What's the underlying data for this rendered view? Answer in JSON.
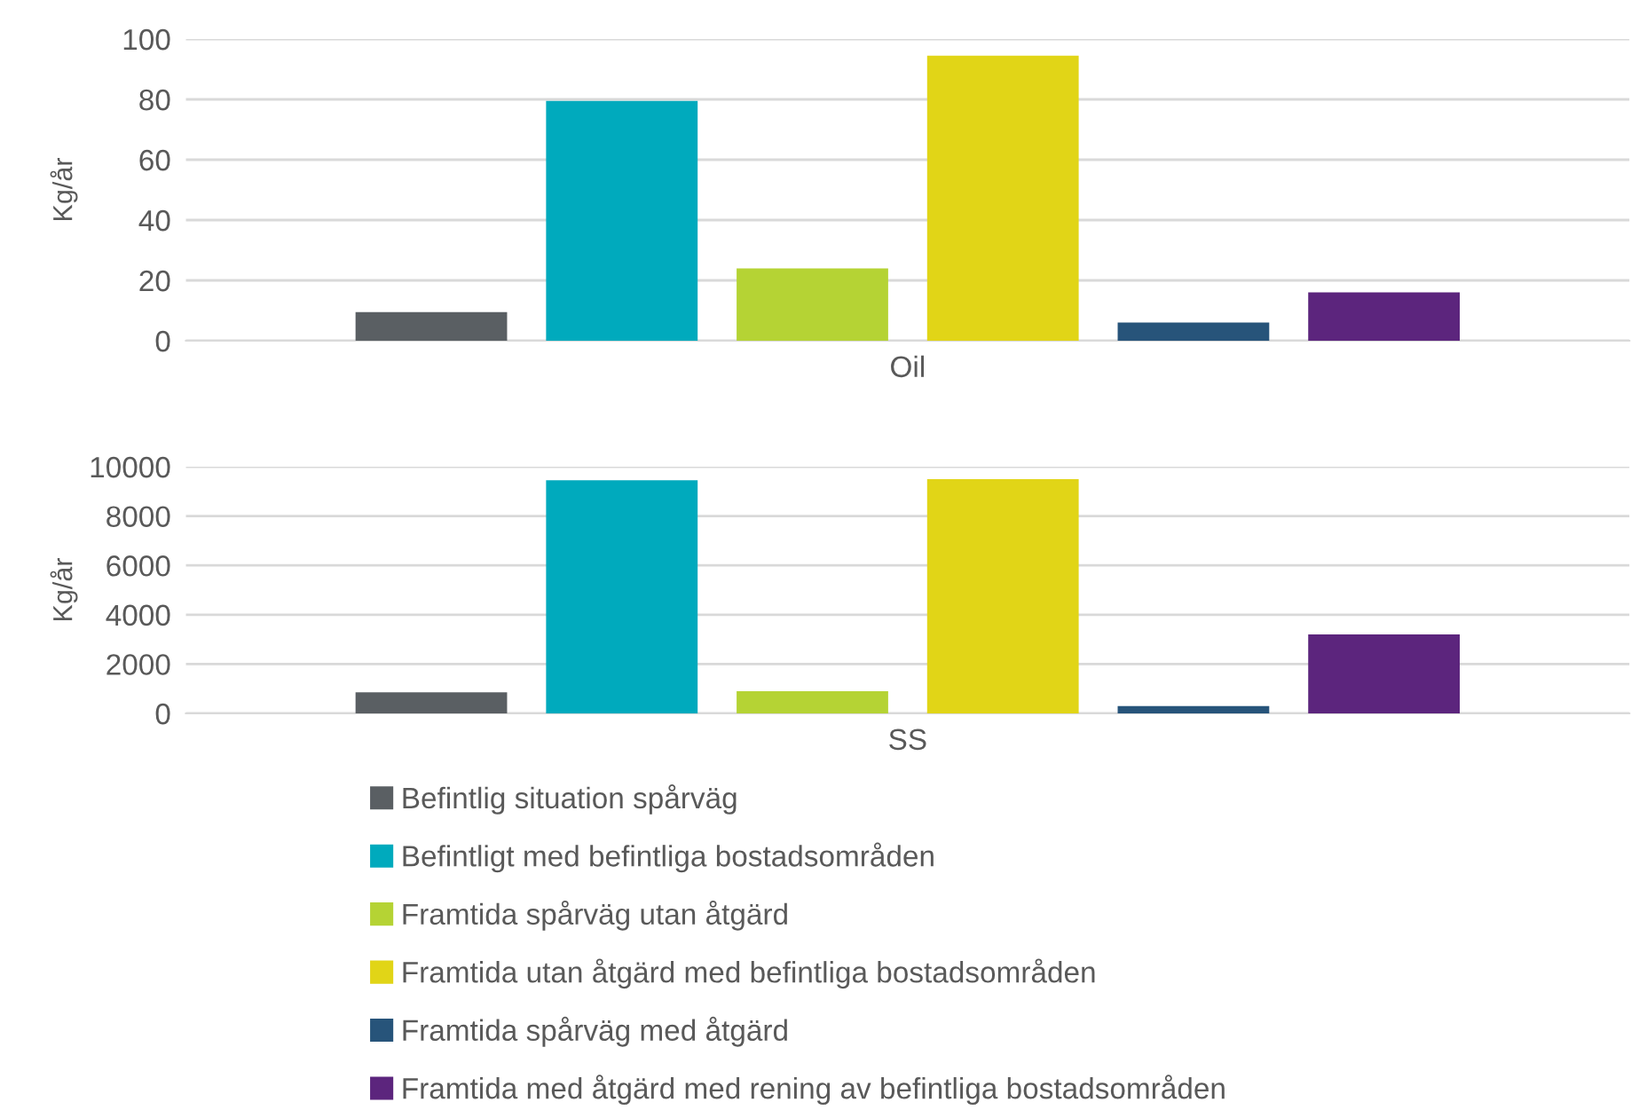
{
  "chart_data": [
    {
      "type": "bar",
      "ylabel": "Kg/år",
      "categories": [
        "Oil"
      ],
      "ylim": [
        0,
        100
      ],
      "yticks": [
        0,
        20,
        40,
        60,
        80,
        100
      ],
      "grid": "y",
      "legend": false,
      "series": [
        {
          "color": "#5a5f63",
          "values": [
            9.5
          ]
        },
        {
          "color": "#00aabd",
          "values": [
            79.5
          ]
        },
        {
          "color": "#b5d334",
          "values": [
            24
          ]
        },
        {
          "color": "#e1d517",
          "values": [
            94.5
          ]
        },
        {
          "color": "#27547a",
          "values": [
            6
          ]
        },
        {
          "color": "#5c257d",
          "values": [
            16
          ]
        }
      ]
    },
    {
      "type": "bar",
      "ylabel": "Kg/år",
      "categories": [
        "SS"
      ],
      "ylim": [
        0,
        10000
      ],
      "yticks": [
        0,
        2000,
        4000,
        6000,
        8000,
        10000
      ],
      "grid": "y",
      "legend": "bottom",
      "series": [
        {
          "name": "Befintlig situation spårväg",
          "color": "#5a5f63",
          "values": [
            850
          ]
        },
        {
          "name": "Befintligt med befintliga bostadsområden",
          "color": "#00aabd",
          "values": [
            9450
          ]
        },
        {
          "name": "Framtida spårväg utan åtgärd",
          "color": "#b5d334",
          "values": [
            900
          ]
        },
        {
          "name": "Framtida utan åtgärd med befintliga bostadsområden",
          "color": "#e1d517",
          "values": [
            9500
          ]
        },
        {
          "name": "Framtida spårväg med åtgärd",
          "color": "#27547a",
          "values": [
            300
          ]
        },
        {
          "name": "Framtida med åtgärd med rening av befintliga bostadsområden",
          "color": "#5c257d",
          "values": [
            3200
          ]
        }
      ]
    }
  ]
}
